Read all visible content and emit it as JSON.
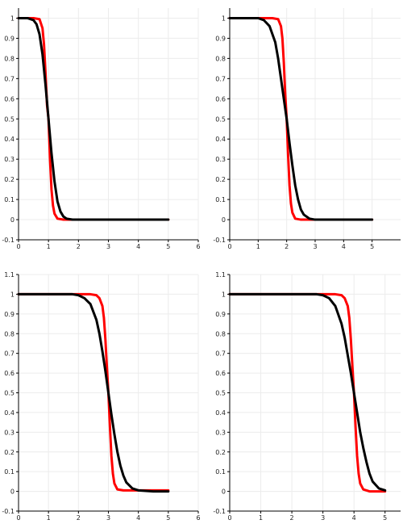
{
  "chart_data": [
    {
      "type": "line",
      "xlim": [
        0,
        6
      ],
      "ylim": [
        -0.1,
        1.05
      ],
      "xticks": [
        "0",
        "1",
        "2",
        "3",
        "4",
        "5",
        "6"
      ],
      "yticks": [
        "-0.1",
        "0",
        "0.1",
        "0.2",
        "0.3",
        "0.4",
        "0.5",
        "0.6",
        "0.7",
        "0.8",
        "0.9",
        "1"
      ],
      "grid": true,
      "series": [
        {
          "color": "#ff0000",
          "x": [
            0,
            0.5,
            0.7,
            0.8,
            0.85,
            0.9,
            0.95,
            1.0,
            1.05,
            1.1,
            1.15,
            1.2,
            1.3,
            1.5,
            5
          ],
          "y": [
            1,
            1,
            0.995,
            0.95,
            0.87,
            0.73,
            0.57,
            0.5,
            0.3,
            0.15,
            0.07,
            0.03,
            0.005,
            0,
            0
          ]
        },
        {
          "color": "#000000",
          "x": [
            0,
            0.3,
            0.5,
            0.6,
            0.7,
            0.8,
            0.9,
            1.0,
            1.1,
            1.2,
            1.3,
            1.4,
            1.5,
            1.6,
            1.8,
            5
          ],
          "y": [
            1,
            1,
            0.99,
            0.97,
            0.92,
            0.82,
            0.67,
            0.5,
            0.33,
            0.19,
            0.09,
            0.04,
            0.015,
            0.005,
            0,
            0
          ]
        }
      ]
    },
    {
      "type": "line",
      "xlim": [
        0,
        6
      ],
      "ylim": [
        -0.1,
        1.05
      ],
      "xticks": [
        "0",
        "1",
        "2",
        "3",
        "4",
        "5"
      ],
      "yticks": [
        "-0.1",
        "0",
        "0.1",
        "0.2",
        "0.3",
        "0.4",
        "0.5",
        "0.6",
        "0.7",
        "0.8",
        "0.9",
        "1"
      ],
      "grid": true,
      "series": [
        {
          "color": "#ff0000",
          "x": [
            0,
            1.5,
            1.7,
            1.8,
            1.85,
            1.9,
            1.95,
            2.0,
            2.05,
            2.1,
            2.15,
            2.2,
            2.3,
            2.5,
            5
          ],
          "y": [
            1,
            1,
            0.995,
            0.96,
            0.9,
            0.78,
            0.62,
            0.5,
            0.32,
            0.17,
            0.08,
            0.035,
            0.005,
            0,
            0
          ]
        },
        {
          "color": "#000000",
          "x": [
            0,
            1.0,
            1.2,
            1.4,
            1.6,
            1.7,
            1.8,
            1.9,
            2.0,
            2.1,
            2.2,
            2.3,
            2.4,
            2.5,
            2.6,
            2.8,
            3.0,
            5
          ],
          "y": [
            1,
            1,
            0.99,
            0.96,
            0.88,
            0.8,
            0.7,
            0.6,
            0.5,
            0.38,
            0.27,
            0.17,
            0.1,
            0.05,
            0.025,
            0.005,
            0,
            0
          ]
        }
      ]
    },
    {
      "type": "line",
      "xlim": [
        0,
        6
      ],
      "ylim": [
        -0.1,
        1.1
      ],
      "xticks": [
        "0",
        "1",
        "2",
        "3",
        "4",
        "5",
        "6"
      ],
      "yticks": [
        "-0.1",
        "0",
        "0.1",
        "0.2",
        "0.3",
        "0.4",
        "0.5",
        "0.6",
        "0.7",
        "0.8",
        "0.9",
        "1",
        "1.1"
      ],
      "grid": true,
      "series": [
        {
          "color": "#ff0000",
          "x": [
            0,
            2.4,
            2.6,
            2.7,
            2.8,
            2.85,
            2.9,
            2.95,
            3.0,
            3.05,
            3.1,
            3.15,
            3.2,
            3.3,
            3.5,
            5
          ],
          "y": [
            1,
            1,
            0.995,
            0.98,
            0.94,
            0.88,
            0.77,
            0.63,
            0.5,
            0.33,
            0.18,
            0.09,
            0.04,
            0.01,
            0.005,
            0.005
          ]
        },
        {
          "color": "#000000",
          "x": [
            0,
            1.8,
            2.0,
            2.2,
            2.4,
            2.6,
            2.7,
            2.8,
            2.9,
            3.0,
            3.1,
            3.2,
            3.3,
            3.4,
            3.5,
            3.6,
            3.8,
            4.0,
            4.5,
            5
          ],
          "y": [
            1,
            1,
            0.995,
            0.98,
            0.95,
            0.87,
            0.8,
            0.71,
            0.61,
            0.5,
            0.39,
            0.29,
            0.2,
            0.13,
            0.08,
            0.045,
            0.015,
            0.005,
            0,
            0
          ]
        }
      ]
    },
    {
      "type": "line",
      "xlim": [
        0,
        5.5
      ],
      "ylim": [
        -0.1,
        1.1
      ],
      "xticks": [
        "0",
        "1",
        "2",
        "3",
        "4",
        "5"
      ],
      "yticks": [
        "-0.1",
        "0",
        "0.1",
        "0.2",
        "0.3",
        "0.4",
        "0.5",
        "0.6",
        "0.7",
        "0.8",
        "0.9",
        "1",
        "1.1"
      ],
      "grid": true,
      "series": [
        {
          "color": "#ff0000",
          "x": [
            0,
            3.4,
            3.6,
            3.7,
            3.8,
            3.85,
            3.9,
            3.95,
            4.0,
            4.05,
            4.1,
            4.15,
            4.2,
            4.3,
            4.5,
            5
          ],
          "y": [
            1,
            1,
            0.995,
            0.98,
            0.94,
            0.88,
            0.77,
            0.63,
            0.5,
            0.33,
            0.18,
            0.09,
            0.04,
            0.01,
            0,
            0
          ]
        },
        {
          "color": "#000000",
          "x": [
            0,
            2.8,
            3.0,
            3.2,
            3.4,
            3.6,
            3.7,
            3.8,
            3.9,
            4.0,
            4.1,
            4.2,
            4.3,
            4.4,
            4.5,
            4.6,
            4.8,
            5.0
          ],
          "y": [
            1,
            1,
            0.995,
            0.98,
            0.94,
            0.85,
            0.78,
            0.69,
            0.6,
            0.5,
            0.4,
            0.3,
            0.22,
            0.15,
            0.09,
            0.05,
            0.015,
            0.005
          ]
        }
      ]
    }
  ]
}
